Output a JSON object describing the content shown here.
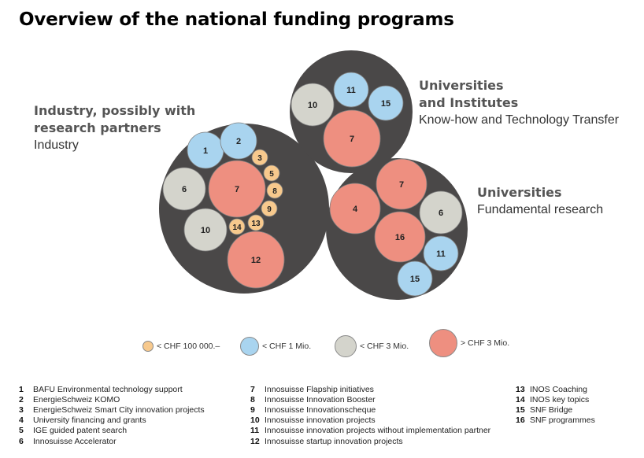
{
  "title": "Overview of the national funding programs",
  "clusters": {
    "industry": {
      "heading_line1": "Industry, possibly with",
      "heading_line2": "research partners",
      "subtitle": "Industry"
    },
    "universities_institutes": {
      "heading_line1": "Universities",
      "heading_line2": "and Institutes",
      "subtitle": "Know-how and Technology Transfer"
    },
    "universities": {
      "heading": "Universities",
      "subtitle": "Fundamental research"
    }
  },
  "colors": {
    "cluster_bg": "#4a4848",
    "orange": "#f7c98d",
    "blue": "#a9d4ef",
    "grey": "#d4d4cc",
    "red": "#ee8f80",
    "stroke": "#7f7f7f"
  },
  "diagram": {
    "industry_bubbles": [
      {
        "label": "1",
        "size": "blue"
      },
      {
        "label": "2",
        "size": "blue"
      },
      {
        "label": "3",
        "size": "orange"
      },
      {
        "label": "5",
        "size": "orange"
      },
      {
        "label": "8",
        "size": "orange"
      },
      {
        "label": "9",
        "size": "orange"
      },
      {
        "label": "13",
        "size": "orange"
      },
      {
        "label": "14",
        "size": "orange"
      },
      {
        "label": "6",
        "size": "grey"
      },
      {
        "label": "7",
        "size": "red"
      },
      {
        "label": "10",
        "size": "grey"
      },
      {
        "label": "12",
        "size": "red"
      }
    ],
    "institutes_bubbles": [
      {
        "label": "11",
        "size": "blue"
      },
      {
        "label": "15",
        "size": "blue"
      },
      {
        "label": "10",
        "size": "grey"
      },
      {
        "label": "7",
        "size": "red"
      }
    ],
    "universities_bubbles": [
      {
        "label": "7",
        "size": "red"
      },
      {
        "label": "4",
        "size": "red"
      },
      {
        "label": "6",
        "size": "grey"
      },
      {
        "label": "16",
        "size": "red"
      },
      {
        "label": "11",
        "size": "blue"
      },
      {
        "label": "15",
        "size": "blue"
      }
    ]
  },
  "legend": [
    {
      "size": "orange",
      "label": "< CHF 100 000.–"
    },
    {
      "size": "blue",
      "label": "< CHF 1 Mio."
    },
    {
      "size": "grey",
      "label": "< CHF 3 Mio."
    },
    {
      "size": "red",
      "label": "> CHF 3 Mio."
    }
  ],
  "programs": [
    {
      "num": "1",
      "name": "BAFU Environmental technology support"
    },
    {
      "num": "2",
      "name": "EnergieSchweiz KOMO"
    },
    {
      "num": "3",
      "name": "EnergieSchweiz Smart City innovation projects"
    },
    {
      "num": "4",
      "name": "University financing and grants"
    },
    {
      "num": "5",
      "name": "IGE guided patent search"
    },
    {
      "num": "6",
      "name": "Innosuisse Accelerator"
    },
    {
      "num": "7",
      "name": "Innosuisse Flapship initiatives"
    },
    {
      "num": "8",
      "name": "Innosuisse Innovation Booster"
    },
    {
      "num": "9",
      "name": "Innosuisse Innovationscheque"
    },
    {
      "num": "10",
      "name": "Innosuisse innovation projects"
    },
    {
      "num": "11",
      "name": "Innosuisse innovation projects without implementation partner"
    },
    {
      "num": "12",
      "name": "Innosuisse startup innovation projects"
    },
    {
      "num": "13",
      "name": "INOS Coaching"
    },
    {
      "num": "14",
      "name": "INOS key topics"
    },
    {
      "num": "15",
      "name": "SNF Bridge"
    },
    {
      "num": "16",
      "name": "SNF programmes"
    }
  ]
}
